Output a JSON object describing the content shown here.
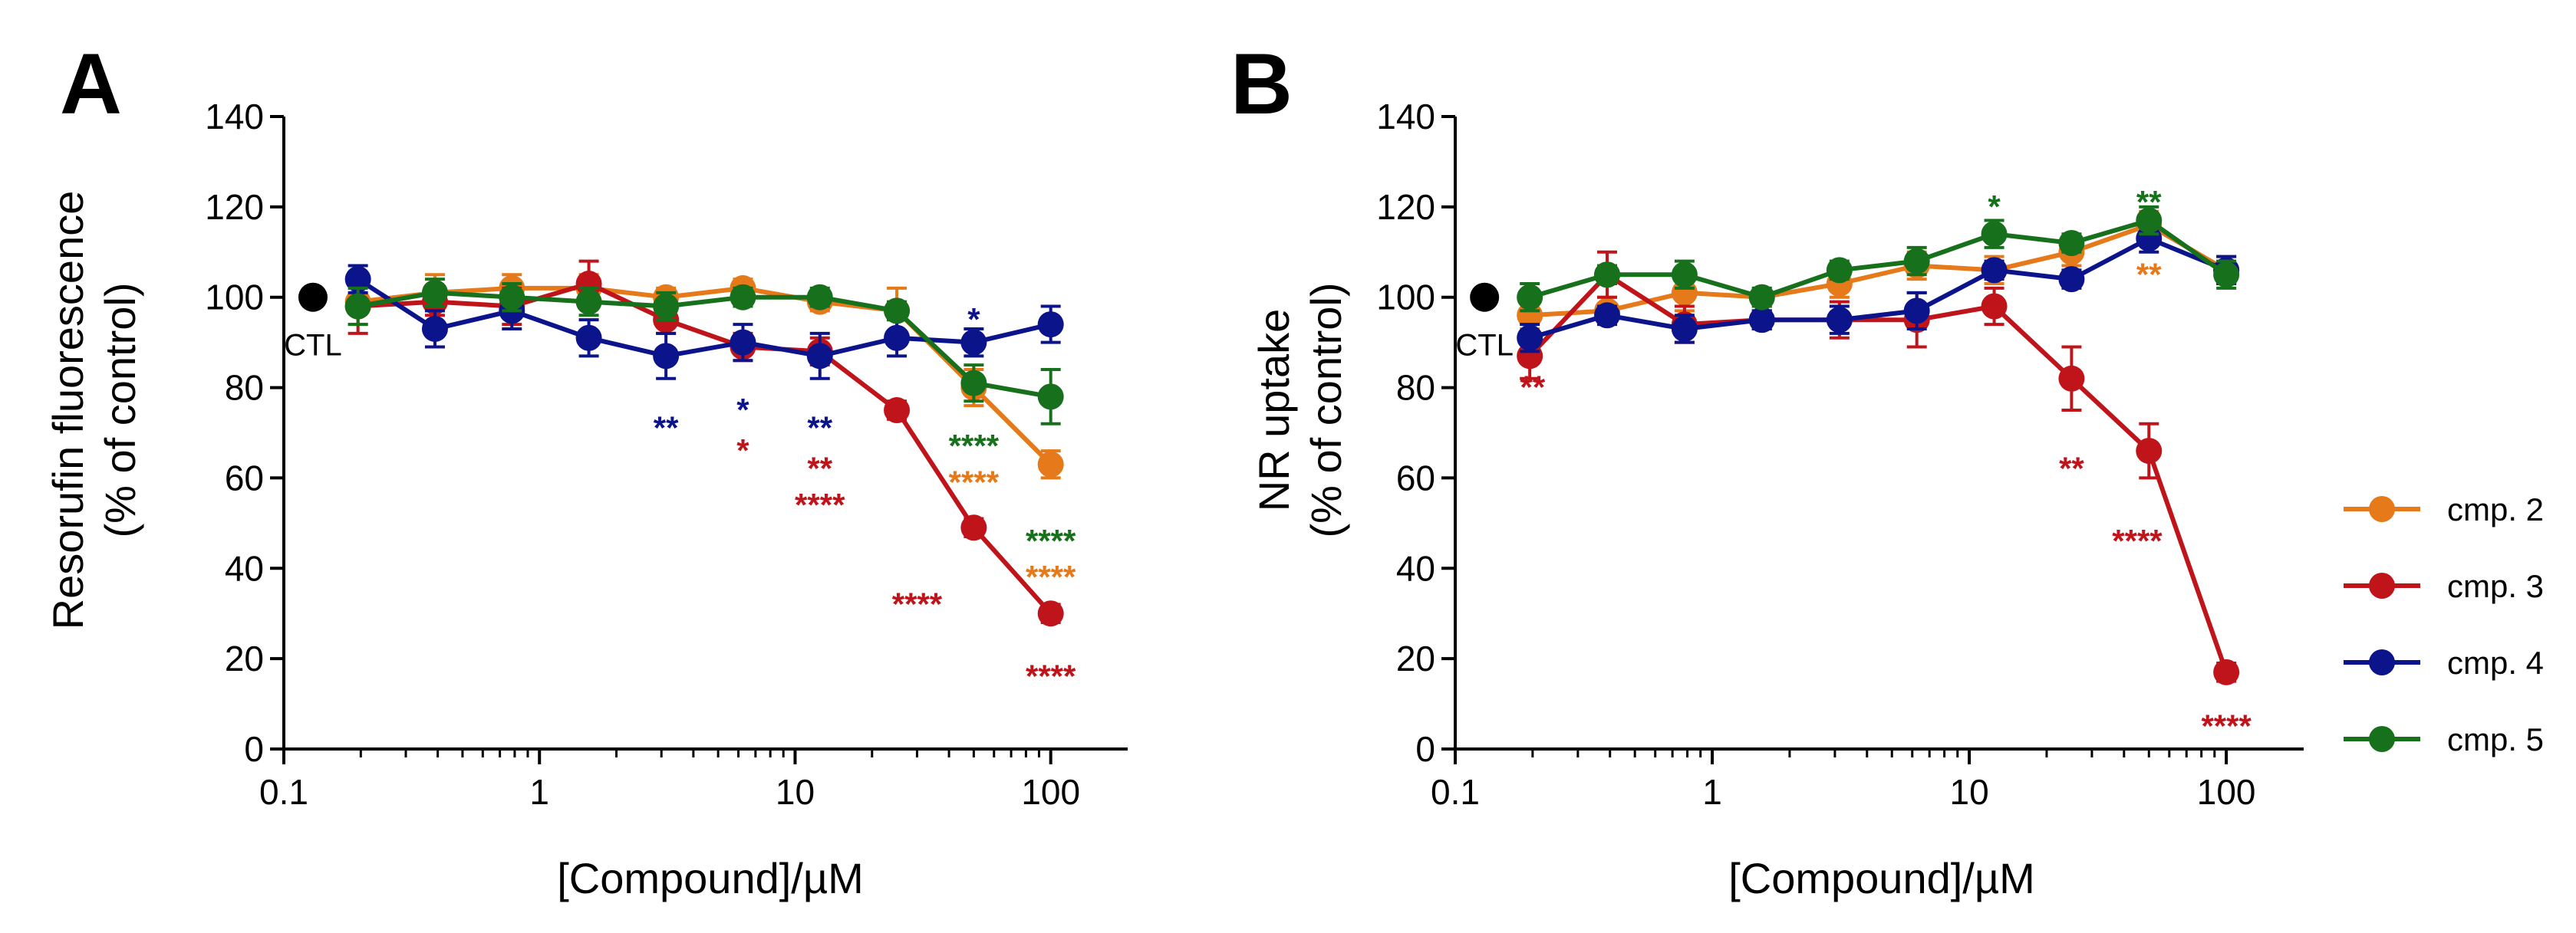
{
  "legend": [
    {
      "label": "cmp. 2",
      "color": "#e6791a"
    },
    {
      "label": "cmp. 3",
      "color": "#c0141b"
    },
    {
      "label": "cmp. 4",
      "color": "#0c148c"
    },
    {
      "label": "cmp. 5",
      "color": "#17701c"
    }
  ],
  "chart_data": [
    {
      "type": "line",
      "panel": "A",
      "ylabel_line1": "Resorufin fluorescence",
      "ylabel_line2": "(% of control)",
      "xlabel": "[Compound]/µM",
      "xscale": "log",
      "xlim": [
        0.1,
        200
      ],
      "ylim": [
        0,
        140
      ],
      "xticks": [
        {
          "v": 0.1,
          "label": "0.1"
        },
        {
          "v": 1,
          "label": "1"
        },
        {
          "v": 10,
          "label": "10"
        },
        {
          "v": 100,
          "label": "100"
        }
      ],
      "yticks": [
        0,
        20,
        40,
        60,
        80,
        100,
        120,
        140
      ],
      "control": {
        "label": "CTL",
        "x": 0.13,
        "y": 100,
        "color": "#000000"
      },
      "x": [
        0.195,
        0.39,
        0.78,
        1.56,
        3.125,
        6.25,
        12.5,
        25,
        50,
        100
      ],
      "series": [
        {
          "name": "cmp. 2",
          "color": "#e6791a",
          "values": [
            99,
            101,
            102,
            102,
            100,
            102,
            99,
            97,
            80,
            63
          ],
          "errors": [
            5,
            4,
            3,
            3,
            2,
            2,
            2,
            5,
            4,
            3
          ]
        },
        {
          "name": "cmp. 3",
          "color": "#c0141b",
          "values": [
            98,
            99,
            98,
            103,
            95,
            89,
            88,
            75,
            49,
            30
          ],
          "errors": [
            6,
            3,
            4,
            5,
            3,
            3,
            3,
            2,
            2,
            2
          ]
        },
        {
          "name": "cmp. 4",
          "color": "#0c148c",
          "values": [
            104,
            93,
            97,
            91,
            87,
            90,
            87,
            91,
            90,
            94
          ],
          "errors": [
            3,
            4,
            4,
            4,
            5,
            4,
            5,
            4,
            3,
            4
          ]
        },
        {
          "name": "cmp. 5",
          "color": "#17701c",
          "values": [
            98,
            101,
            100,
            99,
            98,
            100,
            100,
            97,
            81,
            78
          ],
          "errors": [
            4,
            3,
            3,
            3,
            3,
            2,
            2,
            2,
            4,
            6
          ]
        }
      ],
      "annotations": [
        {
          "text": "**",
          "x": 3.125,
          "y": 71,
          "color": "#0c148c"
        },
        {
          "text": "*",
          "x": 6.25,
          "y": 75,
          "color": "#0c148c"
        },
        {
          "text": "*",
          "x": 6.25,
          "y": 66,
          "color": "#c0141b"
        },
        {
          "text": "**",
          "x": 12.5,
          "y": 71,
          "color": "#0c148c"
        },
        {
          "text": "**",
          "x": 12.5,
          "y": 62,
          "color": "#c0141b"
        },
        {
          "text": "****",
          "x": 12.5,
          "y": 54,
          "color": "#c0141b",
          "dx": -1
        },
        {
          "text": "*",
          "x": 50,
          "y": 95,
          "color": "#0c148c"
        },
        {
          "text": "****",
          "x": 50,
          "y": 67,
          "color": "#17701c"
        },
        {
          "text": "****",
          "x": 50,
          "y": 59,
          "color": "#e6791a"
        },
        {
          "text": "****",
          "x": 30,
          "y": 32,
          "color": "#c0141b"
        },
        {
          "text": "****",
          "x": 100,
          "y": 46,
          "color": "#17701c"
        },
        {
          "text": "****",
          "x": 100,
          "y": 38,
          "color": "#e6791a"
        },
        {
          "text": "****",
          "x": 100,
          "y": 16,
          "color": "#c0141b"
        }
      ]
    },
    {
      "type": "line",
      "panel": "B",
      "ylabel_line1": "NR uptake",
      "ylabel_line2": "(% of control)",
      "xlabel": "[Compound]/µM",
      "xscale": "log",
      "xlim": [
        0.1,
        200
      ],
      "ylim": [
        0,
        140
      ],
      "xticks": [
        {
          "v": 0.1,
          "label": "0.1"
        },
        {
          "v": 1,
          "label": "1"
        },
        {
          "v": 10,
          "label": "10"
        },
        {
          "v": 100,
          "label": "100"
        }
      ],
      "yticks": [
        0,
        20,
        40,
        60,
        80,
        100,
        120,
        140
      ],
      "control": {
        "label": "CTL",
        "x": 0.13,
        "y": 100,
        "color": "#000000"
      },
      "x": [
        0.195,
        0.39,
        0.78,
        1.56,
        3.125,
        6.25,
        12.5,
        25,
        50,
        100
      ],
      "series": [
        {
          "name": "cmp. 2",
          "color": "#e6791a",
          "values": [
            96,
            97,
            101,
            100,
            103,
            107,
            106,
            110,
            116,
            106
          ],
          "errors": [
            3,
            3,
            4,
            2,
            3,
            3,
            3,
            3,
            3,
            3
          ]
        },
        {
          "name": "cmp. 3",
          "color": "#c0141b",
          "values": [
            87,
            105,
            94,
            95,
            95,
            95,
            98,
            82,
            66,
            17
          ],
          "errors": [
            5,
            5,
            4,
            2,
            4,
            6,
            4,
            7,
            6,
            2
          ]
        },
        {
          "name": "cmp. 4",
          "color": "#0c148c",
          "values": [
            91,
            96,
            93,
            95,
            95,
            97,
            106,
            104,
            113,
            106
          ],
          "errors": [
            3,
            2,
            3,
            2,
            3,
            4,
            2,
            2,
            3,
            3
          ]
        },
        {
          "name": "cmp. 5",
          "color": "#17701c",
          "values": [
            100,
            105,
            105,
            100,
            106,
            108,
            114,
            112,
            117,
            105
          ],
          "errors": [
            3,
            2,
            3,
            2,
            2,
            3,
            3,
            2,
            3,
            3
          ]
        }
      ],
      "annotations": [
        {
          "text": "**",
          "x": 0.2,
          "y": 80,
          "color": "#c0141b"
        },
        {
          "text": "*",
          "x": 12.5,
          "y": 120,
          "color": "#17701c"
        },
        {
          "text": "**",
          "x": 50,
          "y": 121,
          "color": "#17701c"
        },
        {
          "text": "**",
          "x": 50,
          "y": 105,
          "color": "#e6791a"
        },
        {
          "text": "**",
          "x": 25,
          "y": 62,
          "color": "#c0141b"
        },
        {
          "text": "****",
          "x": 45,
          "y": 46,
          "color": "#c0141b"
        },
        {
          "text": "****",
          "x": 100,
          "y": 5,
          "color": "#c0141b"
        }
      ]
    }
  ]
}
